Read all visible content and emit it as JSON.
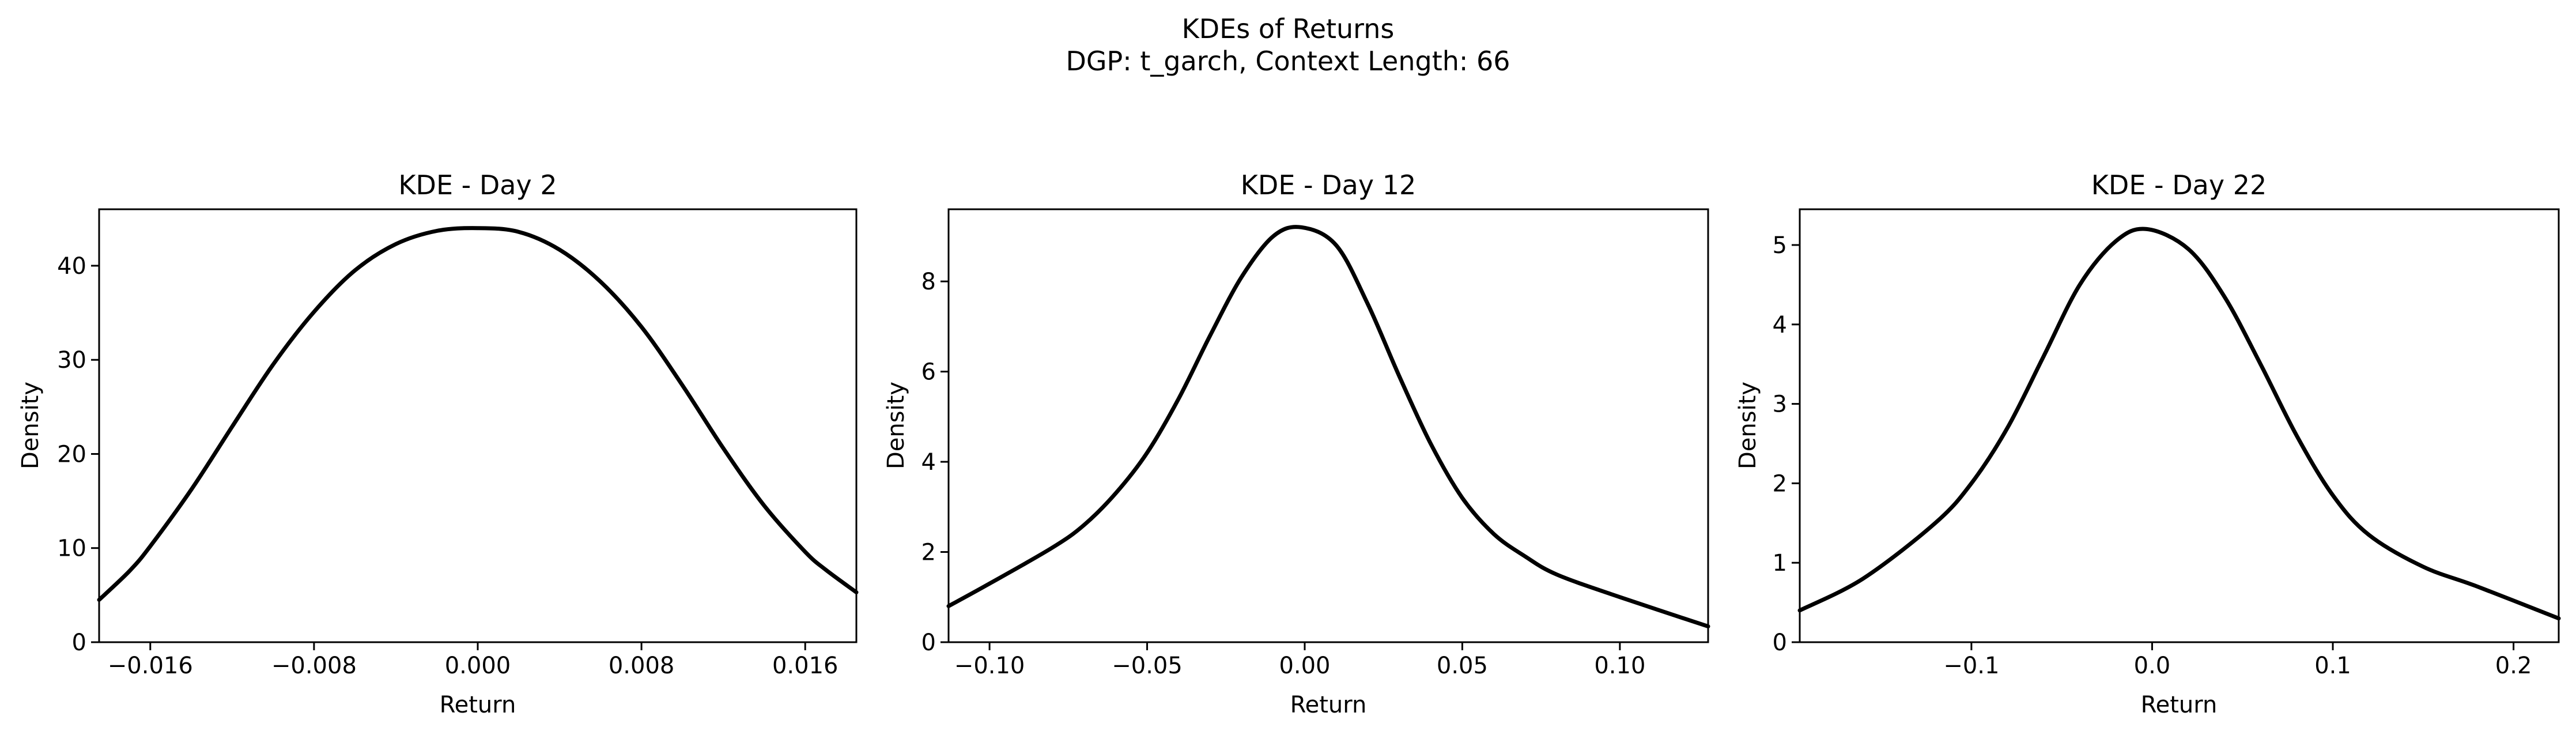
{
  "figure": {
    "title_line1": "KDEs of Returns",
    "title_line2": "DGP: t_garch, Context Length: 66"
  },
  "chart_data": [
    {
      "type": "line",
      "title": "KDE - Day 2",
      "xlabel": "Return",
      "ylabel": "Density",
      "xlim": [
        -0.0185,
        0.0185
      ],
      "ylim": [
        0,
        46
      ],
      "xticks": [
        -0.016,
        -0.008,
        0.0,
        0.008,
        0.016
      ],
      "xtick_labels": [
        "−0.016",
        "−0.008",
        "0.000",
        "0.008",
        "0.016"
      ],
      "yticks": [
        0,
        10,
        20,
        30,
        40
      ],
      "ytick_labels": [
        "0",
        "10",
        "20",
        "30",
        "40"
      ],
      "line_color": "#000000",
      "grid": false,
      "series": [
        {
          "x": [
            -0.0185,
            -0.017,
            -0.016,
            -0.014,
            -0.012,
            -0.01,
            -0.008,
            -0.006,
            -0.004,
            -0.002,
            0.0,
            0.002,
            0.004,
            0.006,
            0.008,
            0.01,
            0.012,
            0.014,
            0.016,
            0.017,
            0.0185
          ],
          "y": [
            4.5,
            7.6,
            10.2,
            16.2,
            22.9,
            29.5,
            35.1,
            39.5,
            42.3,
            43.7,
            44.0,
            43.6,
            41.7,
            38.3,
            33.5,
            27.3,
            20.6,
            14.5,
            9.6,
            7.7,
            5.3
          ]
        }
      ]
    },
    {
      "type": "line",
      "title": "KDE - Day 12",
      "xlabel": "Return",
      "ylabel": "Density",
      "xlim": [
        -0.113,
        0.128
      ],
      "ylim": [
        0,
        9.6
      ],
      "xticks": [
        -0.1,
        -0.05,
        0.0,
        0.05,
        0.1
      ],
      "xtick_labels": [
        "−0.10",
        "−0.05",
        "0.00",
        "0.05",
        "0.10"
      ],
      "yticks": [
        0,
        2,
        4,
        6,
        8
      ],
      "ytick_labels": [
        "0",
        "2",
        "4",
        "6",
        "8"
      ],
      "line_color": "#000000",
      "grid": false,
      "series": [
        {
          "x": [
            -0.113,
            -0.1,
            -0.08,
            -0.07,
            -0.06,
            -0.05,
            -0.04,
            -0.03,
            -0.02,
            -0.01,
            -0.001,
            0.01,
            0.02,
            0.03,
            0.04,
            0.05,
            0.06,
            0.07,
            0.08,
            0.1,
            0.128
          ],
          "y": [
            0.8,
            1.3,
            2.1,
            2.6,
            3.3,
            4.2,
            5.4,
            6.8,
            8.1,
            9.0,
            9.2,
            8.8,
            7.5,
            5.9,
            4.4,
            3.2,
            2.4,
            1.9,
            1.5,
            1.0,
            0.35
          ]
        }
      ]
    },
    {
      "type": "line",
      "title": "KDE - Day 22",
      "xlabel": "Return",
      "ylabel": "Density",
      "xlim": [
        -0.195,
        0.225
      ],
      "ylim": [
        0,
        5.45
      ],
      "xticks": [
        -0.1,
        0.0,
        0.1,
        0.2
      ],
      "xtick_labels": [
        "−0.1",
        "0.0",
        "0.1",
        "0.2"
      ],
      "yticks": [
        0,
        1,
        2,
        3,
        4,
        5
      ],
      "ytick_labels": [
        "0",
        "1",
        "2",
        "3",
        "4",
        "5"
      ],
      "line_color": "#000000",
      "grid": false,
      "series": [
        {
          "x": [
            -0.195,
            -0.16,
            -0.12,
            -0.1,
            -0.08,
            -0.06,
            -0.04,
            -0.02,
            -0.003,
            0.02,
            0.04,
            0.06,
            0.08,
            0.1,
            0.12,
            0.15,
            0.18,
            0.225
          ],
          "y": [
            0.4,
            0.8,
            1.5,
            2.0,
            2.7,
            3.6,
            4.5,
            5.05,
            5.2,
            4.95,
            4.35,
            3.5,
            2.6,
            1.85,
            1.35,
            0.95,
            0.7,
            0.3
          ]
        }
      ]
    }
  ]
}
